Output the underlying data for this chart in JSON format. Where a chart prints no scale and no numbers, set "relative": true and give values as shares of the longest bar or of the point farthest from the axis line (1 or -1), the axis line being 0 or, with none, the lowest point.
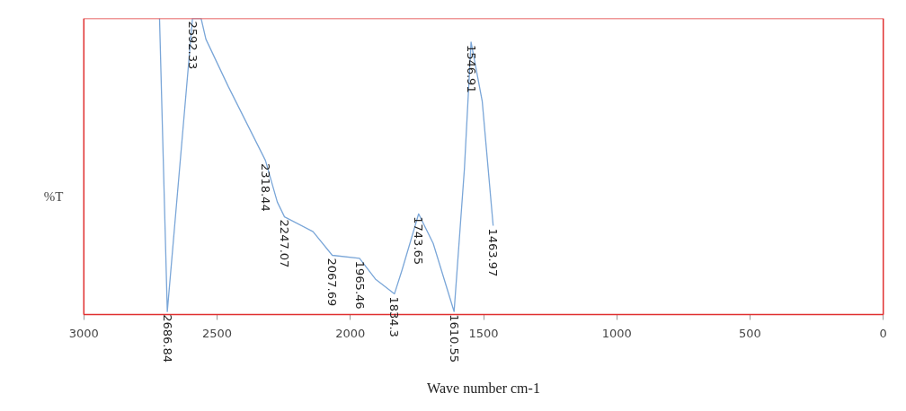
{
  "chart_data": {
    "type": "line",
    "relative": true,
    "xlabel": "Wave number cm-1",
    "ylabel": "%T",
    "xlim": [
      3000,
      0
    ],
    "xticks": [
      3000,
      2500,
      2000,
      1500,
      1000,
      500,
      0
    ],
    "grid": false,
    "series": [
      {
        "color": "#7aa6d8",
        "x": [
          2716,
          2686.84,
          2592.33,
          2560,
          2542,
          2458,
          2318.44,
          2274,
          2247.07,
          2140,
          2067.69,
          1965.46,
          1906,
          1834.3,
          1806,
          1743.65,
          1689,
          1610.55,
          1572,
          1546.91,
          1505,
          1463.97
        ],
        "values": [
          1.0,
          0.01,
          1.0,
          1.0,
          0.93,
          0.77,
          0.52,
          0.38,
          0.33,
          0.28,
          0.2,
          0.19,
          0.12,
          0.07,
          0.15,
          0.34,
          0.24,
          0.01,
          0.49,
          0.92,
          0.72,
          0.3
        ]
      }
    ],
    "annotations": [
      {
        "text": "2686.84",
        "x": 2686.84,
        "y": 0.01
      },
      {
        "text": "2592.33",
        "x": 2592.33,
        "y": 1.0
      },
      {
        "text": "2318.44",
        "x": 2318.44,
        "y": 0.52
      },
      {
        "text": "2247.07",
        "x": 2247.07,
        "y": 0.33
      },
      {
        "text": "2067.69",
        "x": 2067.69,
        "y": 0.2
      },
      {
        "text": "1965.46",
        "x": 1965.46,
        "y": 0.19
      },
      {
        "text": "1834.3",
        "x": 1834.3,
        "y": 0.07
      },
      {
        "text": "1743.65",
        "x": 1743.65,
        "y": 0.34
      },
      {
        "text": "1610.55",
        "x": 1610.55,
        "y": 0.01
      },
      {
        "text": "1546.91",
        "x": 1546.91,
        "y": 0.92
      },
      {
        "text": "1463.97",
        "x": 1463.97,
        "y": 0.3
      }
    ]
  }
}
